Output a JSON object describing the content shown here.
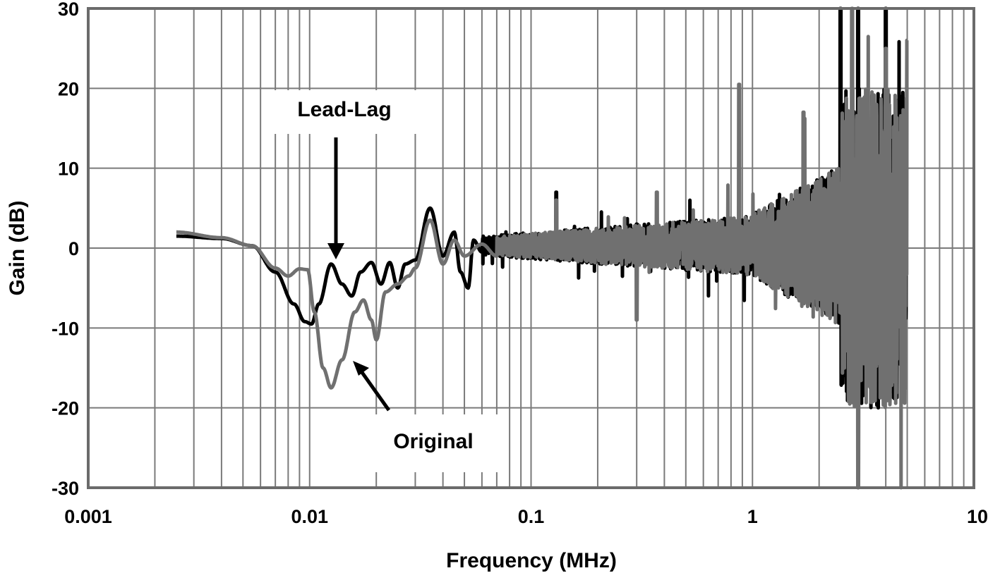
{
  "chart_data": {
    "type": "line",
    "title": "",
    "xlabel": "Frequency (MHz)",
    "ylabel": "Gain (dB)",
    "xscale": "log",
    "xlim": [
      0.001,
      10
    ],
    "ylim": [
      -30,
      30
    ],
    "x_ticks": [
      "0.001",
      "0.01",
      "0.1",
      "1",
      "10"
    ],
    "y_ticks": [
      "30",
      "20",
      "10",
      "0",
      "-10",
      "-20",
      "-30"
    ],
    "grid": true,
    "legend": "none (annotated with arrows)",
    "annotations": [
      {
        "text": "Lead-Lag",
        "arrow_to": {
          "x": 0.0125,
          "y": -1.5
        }
      },
      {
        "text": "Original",
        "arrow_to": {
          "x": 0.0145,
          "y": -15
        }
      }
    ],
    "series": [
      {
        "name": "Lead-Lag",
        "color": "#000000",
        "x": [
          0.0025,
          0.004,
          0.0055,
          0.007,
          0.0085,
          0.0095,
          0.0102,
          0.011,
          0.0125,
          0.014,
          0.0155,
          0.017,
          0.019,
          0.021,
          0.023,
          0.025,
          0.027,
          0.03,
          0.035,
          0.04,
          0.045,
          0.048,
          0.052,
          0.055,
          0.06,
          0.063,
          0.07,
          0.08,
          0.09,
          0.1,
          0.13,
          0.2,
          0.3,
          0.5,
          0.8,
          1.0,
          1.5,
          2.0,
          2.5,
          3.0,
          4.0,
          5.0
        ],
        "values": [
          1.5,
          1.2,
          0.3,
          -3,
          -7,
          -9.2,
          -9.5,
          -7,
          -2,
          -4.5,
          -6,
          -3,
          -1.8,
          -4.5,
          -1.8,
          -5,
          -2,
          -1.5,
          5,
          -1,
          2,
          -3,
          -5,
          1,
          -0.5,
          2.5,
          -1,
          0.5,
          0.8,
          1.2,
          7,
          2,
          3,
          3,
          2.5,
          2,
          3,
          5,
          30,
          30,
          30,
          25
        ],
        "note": "broadband noise increasing above ~1 MHz, spikes reaching ±30 dB near 2.5–5 MHz"
      },
      {
        "name": "Original",
        "color": "#707070",
        "x": [
          0.0025,
          0.004,
          0.0055,
          0.007,
          0.008,
          0.009,
          0.0098,
          0.0105,
          0.0115,
          0.0125,
          0.014,
          0.016,
          0.0175,
          0.019,
          0.02,
          0.022,
          0.025,
          0.028,
          0.03,
          0.035,
          0.04,
          0.045,
          0.05,
          0.06,
          0.07,
          0.1,
          0.13,
          0.3,
          0.37,
          0.87,
          1.7,
          2.5,
          3.0,
          4.0,
          5.0
        ],
        "values": [
          2,
          1.3,
          0.3,
          -2.5,
          -3.5,
          -2.6,
          -2.7,
          -8,
          -15,
          -17.5,
          -14,
          -8,
          -6.5,
          -9,
          -11.5,
          -5.5,
          -4.5,
          -3.5,
          -2.5,
          3.5,
          -2,
          1,
          -1,
          0.5,
          -1,
          0,
          6,
          -9,
          7,
          20.5,
          17,
          -5,
          -30,
          25,
          26
        ],
        "note": "broadband noise increasing above ~1 MHz; spikes near 0.87 MHz (20.5 dB) and 1.7 MHz (17 dB)"
      }
    ]
  },
  "labels": {
    "lead_lag": "Lead-Lag",
    "original": "Original",
    "xlabel": "Frequency (MHz)",
    "ylabel": "Gain (dB)"
  }
}
